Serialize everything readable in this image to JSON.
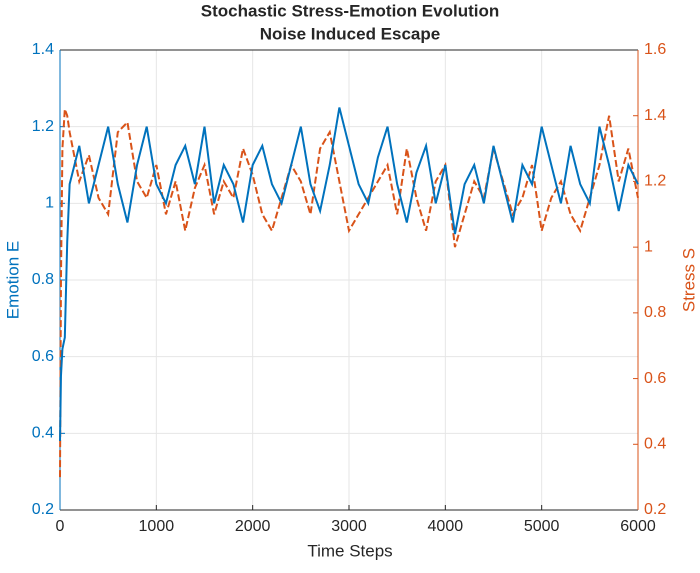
{
  "chart_data": {
    "type": "line",
    "title": "Stochastic Stress-Emotion Evolution",
    "subtitle": "Noise Induced Escape",
    "x_label": "Time Steps",
    "y_label": "Emotion E",
    "y2_label": "Stress S",
    "x": [
      0,
      10,
      25,
      50,
      75,
      100,
      200,
      300,
      400,
      500,
      600,
      700,
      800,
      900,
      1000,
      1100,
      1200,
      1300,
      1400,
      1500,
      1600,
      1700,
      1800,
      1900,
      2000,
      2100,
      2200,
      2300,
      2400,
      2500,
      2600,
      2700,
      2800,
      2900,
      3000,
      3100,
      3200,
      3300,
      3400,
      3500,
      3600,
      3700,
      3800,
      3900,
      4000,
      4100,
      4200,
      4300,
      4400,
      4500,
      4600,
      4700,
      4800,
      4900,
      5000,
      5100,
      5200,
      5300,
      5400,
      5500,
      5600,
      5700,
      5800,
      5900,
      6000
    ],
    "series": [
      {
        "name": "Emotion E",
        "color": "#0072BD",
        "dash": false,
        "values": [
          0.38,
          0.55,
          0.62,
          0.65,
          0.9,
          1.05,
          1.15,
          1.0,
          1.1,
          1.2,
          1.05,
          0.95,
          1.1,
          1.2,
          1.05,
          1.0,
          1.1,
          1.15,
          1.05,
          1.2,
          1.0,
          1.1,
          1.05,
          0.95,
          1.1,
          1.15,
          1.05,
          1.0,
          1.1,
          1.2,
          1.05,
          0.98,
          1.1,
          1.25,
          1.15,
          1.05,
          1.0,
          1.12,
          1.2,
          1.05,
          0.95,
          1.08,
          1.15,
          1.0,
          1.1,
          0.92,
          1.05,
          1.1,
          1.0,
          1.15,
          1.05,
          0.95,
          1.1,
          1.05,
          1.2,
          1.1,
          1.0,
          1.15,
          1.05,
          1.0,
          1.2,
          1.1,
          0.98,
          1.1,
          1.05
        ]
      },
      {
        "name": "Stress S",
        "color": "#D95319",
        "dash": true,
        "axis": "y2",
        "values": [
          0.3,
          0.9,
          1.3,
          1.42,
          1.4,
          1.35,
          1.2,
          1.28,
          1.15,
          1.1,
          1.35,
          1.38,
          1.2,
          1.15,
          1.25,
          1.1,
          1.2,
          1.05,
          1.18,
          1.25,
          1.1,
          1.2,
          1.15,
          1.3,
          1.22,
          1.1,
          1.05,
          1.15,
          1.25,
          1.2,
          1.1,
          1.3,
          1.35,
          1.2,
          1.05,
          1.1,
          1.15,
          1.2,
          1.25,
          1.1,
          1.3,
          1.15,
          1.05,
          1.2,
          1.25,
          1.0,
          1.1,
          1.2,
          1.15,
          1.3,
          1.2,
          1.1,
          1.15,
          1.25,
          1.05,
          1.15,
          1.2,
          1.1,
          1.05,
          1.15,
          1.25,
          1.4,
          1.2,
          1.3,
          1.15
        ]
      }
    ],
    "xlim": [
      0,
      6000
    ],
    "xticks": [
      0,
      1000,
      2000,
      3000,
      4000,
      5000,
      6000
    ],
    "ylim": [
      0.2,
      1.4
    ],
    "yticks": [
      0.2,
      0.4,
      0.6,
      0.8,
      1,
      1.2,
      1.4
    ],
    "y2lim": [
      0.2,
      1.6
    ],
    "y2ticks": [
      0.2,
      0.4,
      0.6,
      0.8,
      1,
      1.2,
      1.4,
      1.6
    ],
    "grid": true
  }
}
